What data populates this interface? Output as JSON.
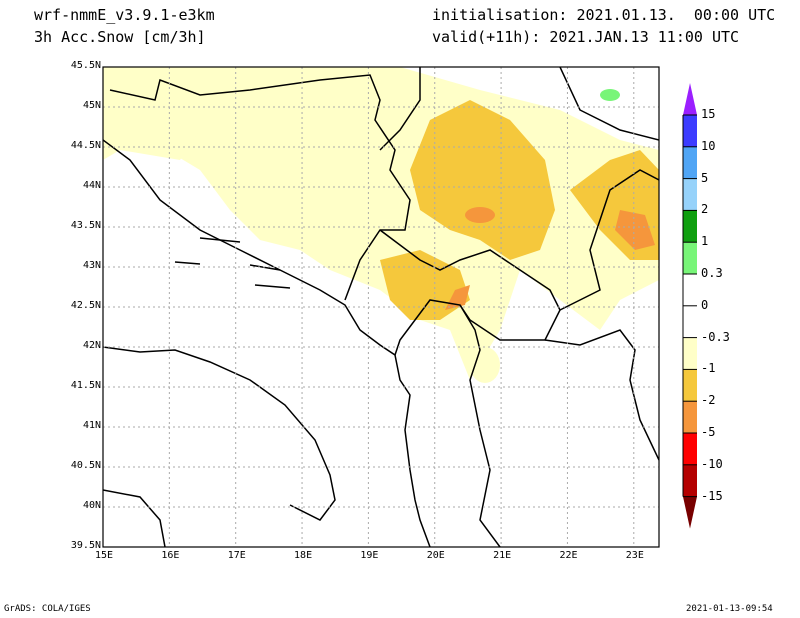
{
  "header": {
    "model": "wrf-nmmE_v3.9.1-e3km",
    "variable": "3h Acc.Snow [cm/3h]",
    "init": "initialisation: 2021.01.13.  00:00 UTC",
    "valid": "valid(+11h): 2021.JAN.13 11:00 UTC"
  },
  "footer": {
    "left": "GrADS: COLA/IGES",
    "right": "2021-01-13-09:54"
  },
  "map": {
    "lon_labels": [
      "15E",
      "16E",
      "17E",
      "18E",
      "19E",
      "20E",
      "21E",
      "22E",
      "23E"
    ],
    "lat_labels": [
      "45.5N",
      "45N",
      "44.5N",
      "44N",
      "43.5N",
      "43N",
      "42.5N",
      "42N",
      "41.5N",
      "41N",
      "40.5N",
      "40N",
      "39.5N"
    ],
    "lon_values": [
      15,
      16,
      17,
      18,
      19,
      20,
      21,
      22,
      23
    ],
    "lat_values": [
      45.5,
      45,
      44.5,
      44,
      43.5,
      43,
      42.5,
      42,
      41.5,
      41,
      40.5,
      40,
      39.5
    ],
    "lon_range": [
      15,
      23.38
    ],
    "lat_range": [
      39.5,
      45.5
    ]
  },
  "colorbar": {
    "labels": [
      "15",
      "10",
      "5",
      "2",
      "1",
      "0.3",
      "0",
      "-0.3",
      "-1",
      "-2",
      "-5",
      "-10",
      "-15"
    ],
    "colors": [
      "#9b1fff",
      "#3c3cff",
      "#50a5f5",
      "#96d2fa",
      "#0f9f0f",
      "#78f578",
      "#ffffff",
      "#ffffff",
      "#ffffc8",
      "#f5c83c",
      "#f5963c",
      "#ff0000",
      "#b40000",
      "#780000"
    ]
  }
}
